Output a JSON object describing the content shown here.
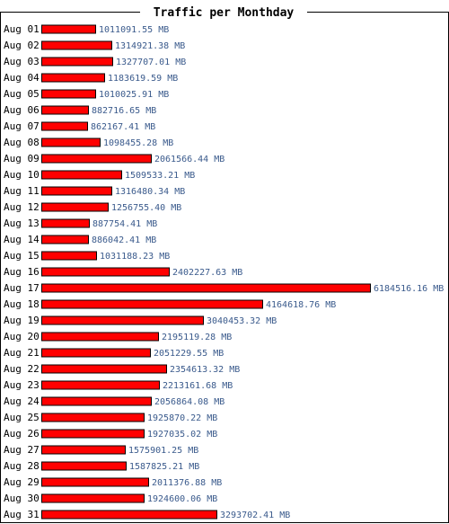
{
  "chart_data": {
    "type": "bar",
    "orientation": "horizontal",
    "title": "Traffic per Monthday",
    "categories": [
      "Aug 01",
      "Aug 02",
      "Aug 03",
      "Aug 04",
      "Aug 05",
      "Aug 06",
      "Aug 07",
      "Aug 08",
      "Aug 09",
      "Aug 10",
      "Aug 11",
      "Aug 12",
      "Aug 13",
      "Aug 14",
      "Aug 15",
      "Aug 16",
      "Aug 17",
      "Aug 18",
      "Aug 19",
      "Aug 20",
      "Aug 21",
      "Aug 22",
      "Aug 23",
      "Aug 24",
      "Aug 25",
      "Aug 26",
      "Aug 27",
      "Aug 28",
      "Aug 29",
      "Aug 30",
      "Aug 31"
    ],
    "values": [
      1011091.55,
      1314921.38,
      1327707.01,
      1183619.59,
      1010025.91,
      882716.65,
      862167.41,
      1098455.28,
      2061566.44,
      1509533.21,
      1316480.34,
      1256755.4,
      887754.41,
      886042.41,
      1031188.23,
      2402227.63,
      6184516.16,
      4164618.76,
      3040453.32,
      2195119.28,
      2051229.55,
      2354613.32,
      2213161.68,
      2056864.08,
      1925870.22,
      1927035.02,
      1575901.25,
      1587825.21,
      2011376.88,
      1924600.06,
      3293702.41
    ],
    "value_labels": [
      "1011091.55 MB",
      "1314921.38 MB",
      "1327707.01 MB",
      "1183619.59 MB",
      "1010025.91 MB",
      "882716.65 MB",
      "862167.41 MB",
      "1098455.28 MB",
      "2061566.44 MB",
      "1509533.21 MB",
      "1316480.34 MB",
      "1256755.40 MB",
      "887754.41 MB",
      "886042.41 MB",
      "1031188.23 MB",
      "2402227.63 MB",
      "6184516.16 MB",
      "4164618.76 MB",
      "3040453.32 MB",
      "2195119.28 MB",
      "2051229.55 MB",
      "2354613.32 MB",
      "2213161.68 MB",
      "2056864.08 MB",
      "1925870.22 MB",
      "1927035.02 MB",
      "1575901.25 MB",
      "1587825.21 MB",
      "2011376.88 MB",
      "1924600.06 MB",
      "3293702.41 MB"
    ],
    "unit": "MB",
    "xlim": [
      0,
      6184516.16
    ],
    "grid": false,
    "colors": {
      "bar": "#ff0000",
      "bar_border": "#000000",
      "value_text": "#3a5a8c",
      "frame": "#000000"
    }
  }
}
